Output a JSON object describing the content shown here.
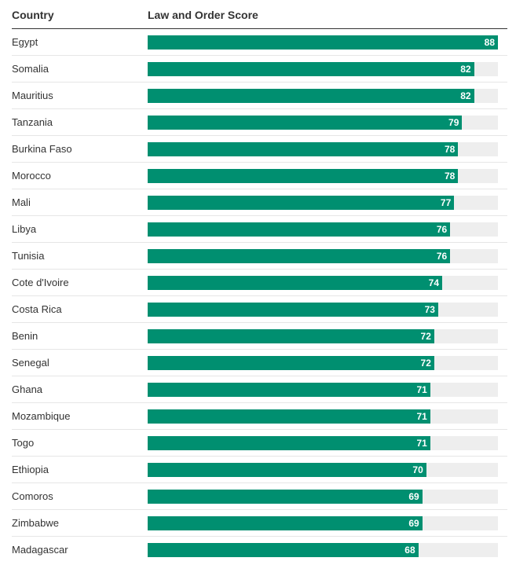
{
  "header": {
    "country_label": "Country",
    "score_label": "Law and Order Score"
  },
  "colors": {
    "bar": "#008f70",
    "track": "#eeeeee"
  },
  "chart_data": {
    "type": "bar",
    "orientation": "horizontal",
    "xlim": [
      0,
      88
    ],
    "categories": [
      "Egypt",
      "Somalia",
      "Mauritius",
      "Tanzania",
      "Burkina Faso",
      "Morocco",
      "Mali",
      "Libya",
      "Tunisia",
      "Cote d'Ivoire",
      "Costa Rica",
      "Benin",
      "Senegal",
      "Ghana",
      "Mozambique",
      "Togo",
      "Ethiopia",
      "Comoros",
      "Zimbabwe",
      "Madagascar"
    ],
    "values": [
      88,
      82,
      82,
      79,
      78,
      78,
      77,
      76,
      76,
      74,
      73,
      72,
      72,
      71,
      71,
      71,
      70,
      69,
      69,
      68
    ],
    "xlabel": "Law and Order Score",
    "ylabel": "Country"
  }
}
